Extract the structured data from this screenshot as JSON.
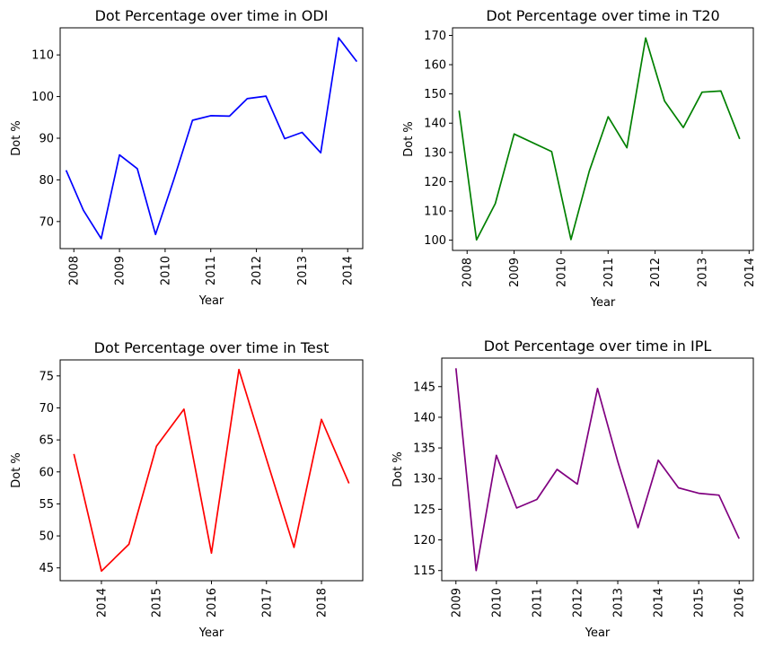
{
  "chart_data": [
    {
      "type": "line",
      "title": "Dot Percentage over time in ODI",
      "xlabel": "Year",
      "ylabel": "Dot %",
      "color": "#0000ff",
      "x": [
        2007.83,
        2008.21,
        2008.6,
        2009.0,
        2009.39,
        2009.79,
        2010.19,
        2010.6,
        2011.0,
        2011.41,
        2011.8,
        2012.21,
        2012.62,
        2013.0,
        2013.41,
        2013.8,
        2014.2
      ],
      "values": [
        82.3,
        72.7,
        65.9,
        86.0,
        82.7,
        66.9,
        80.1,
        94.3,
        95.4,
        95.3,
        99.5,
        100.1,
        89.9,
        91.4,
        86.5,
        114.1,
        108.4
      ],
      "xticks": [
        "2008",
        "2009",
        "2010",
        "2011",
        "2012",
        "2013",
        "2014"
      ],
      "yticks": [
        "70",
        "80",
        "90",
        "100",
        "110"
      ],
      "xlim": [
        2007.7,
        2014.33
      ],
      "ylim": [
        63.5,
        116.5
      ]
    },
    {
      "type": "line",
      "title": "Dot Percentage over time in T20",
      "xlabel": "Year",
      "ylabel": "Dot %",
      "color": "#008000",
      "x": [
        2007.83,
        2008.2,
        2008.6,
        2009.0,
        2009.8,
        2010.21,
        2010.6,
        2011.0,
        2011.4,
        2011.8,
        2012.2,
        2012.6,
        2013.0,
        2013.4,
        2013.8
      ],
      "values": [
        144.3,
        100.1,
        112.5,
        136.3,
        130.3,
        100.2,
        123.6,
        142.2,
        131.6,
        169.1,
        147.6,
        138.5,
        150.6,
        151.0,
        134.6
      ],
      "xticks": [
        "2008",
        "2009",
        "2010",
        "2011",
        "2012",
        "2013",
        "2014"
      ],
      "yticks": [
        "100",
        "110",
        "120",
        "130",
        "140",
        "150",
        "160",
        "170"
      ],
      "xlim": [
        2007.69,
        2014.09
      ],
      "ylim": [
        96.5,
        172.6
      ]
    },
    {
      "type": "line",
      "title": "Dot Percentage over time in Test",
      "xlabel": "Year",
      "ylabel": "Dot %",
      "color": "#ff0000",
      "x": [
        2013.5,
        2014.0,
        2014.5,
        2015.0,
        2015.5,
        2016.0,
        2016.5,
        2017.0,
        2017.5,
        2018.0,
        2018.5
      ],
      "values": [
        62.8,
        44.5,
        48.7,
        64.0,
        69.8,
        47.3,
        76.0,
        62.0,
        48.2,
        68.2,
        58.2
      ],
      "xticks": [
        "2014",
        "2015",
        "2016",
        "2017",
        "2018"
      ],
      "yticks": [
        "45",
        "50",
        "55",
        "60",
        "65",
        "70",
        "75"
      ],
      "xlim": [
        2013.25,
        2018.75
      ],
      "ylim": [
        43.0,
        77.5
      ]
    },
    {
      "type": "line",
      "title": "Dot Percentage over time in IPL",
      "xlabel": "Year",
      "ylabel": "Dot %",
      "color": "#800080",
      "x": [
        2009.0,
        2009.5,
        2010.0,
        2010.5,
        2011.0,
        2011.5,
        2012.0,
        2012.5,
        2013.0,
        2013.5,
        2014.0,
        2014.5,
        2015.0,
        2015.5,
        2016.0
      ],
      "values": [
        148.0,
        115.0,
        133.8,
        125.2,
        126.6,
        131.5,
        129.1,
        144.7,
        132.8,
        122.0,
        133.0,
        128.5,
        127.6,
        127.3,
        120.2
      ],
      "xticks": [
        "2009",
        "2010",
        "2011",
        "2012",
        "2013",
        "2014",
        "2015",
        "2016"
      ],
      "yticks": [
        "115",
        "120",
        "125",
        "130",
        "135",
        "140",
        "145"
      ],
      "xlim": [
        2008.65,
        2016.35
      ],
      "ylim": [
        113.35,
        149.65
      ]
    }
  ]
}
